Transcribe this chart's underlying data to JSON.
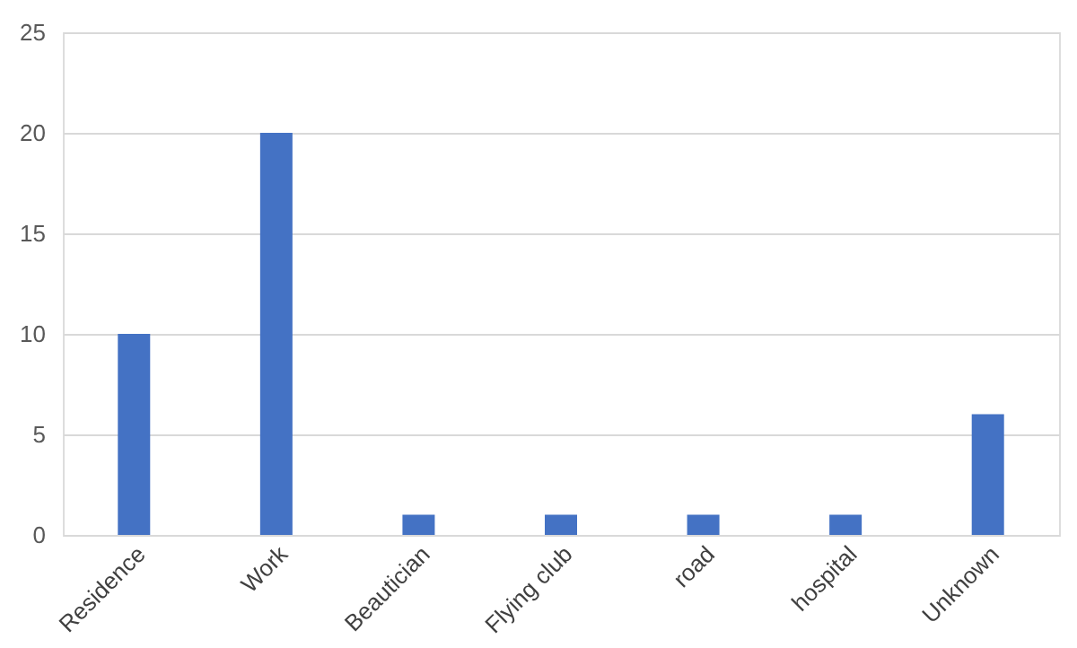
{
  "chart_data": {
    "type": "bar",
    "categories": [
      "Residence",
      "Work",
      "Beautician",
      "Flying club",
      "road",
      "hospital",
      "Unknown"
    ],
    "values": [
      10,
      20,
      1,
      1,
      1,
      1,
      6
    ],
    "color": "#4472c4",
    "ylim": [
      0,
      25
    ],
    "yticks": [
      0,
      5,
      10,
      15,
      20,
      25
    ],
    "grid": "y"
  }
}
